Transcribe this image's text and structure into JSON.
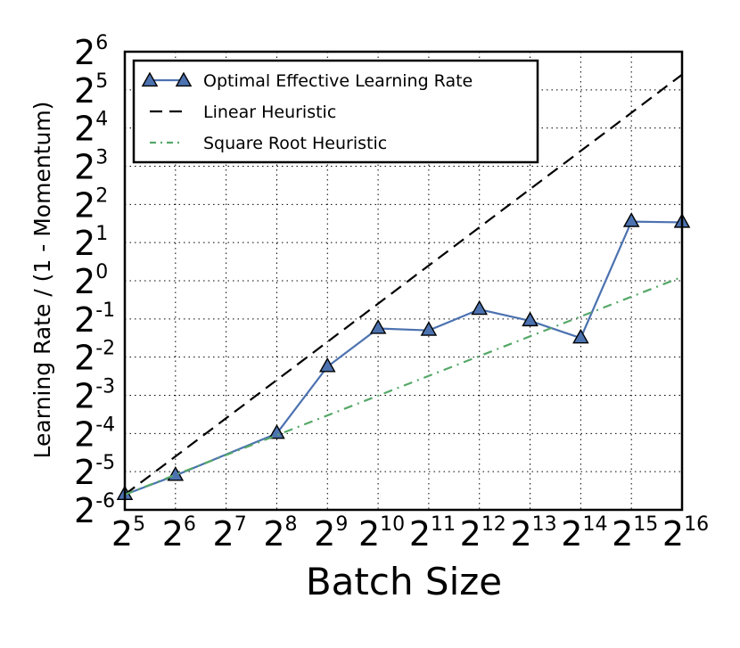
{
  "chart_data": {
    "type": "line",
    "xlabel": "Batch Size",
    "ylabel": "Learning Rate / (1 - Momentum)",
    "scale": "log2",
    "xlim": [
      5,
      16
    ],
    "ylim": [
      -6,
      6
    ],
    "x_tick_exponents": [
      5,
      6,
      7,
      8,
      9,
      10,
      11,
      12,
      13,
      14,
      15,
      16
    ],
    "y_tick_exponents": [
      -6,
      -5,
      -4,
      -3,
      -2,
      -1,
      0,
      1,
      2,
      3,
      4,
      5,
      6
    ],
    "tick_base": "2",
    "grid": true,
    "legend_position": "top-left",
    "series": [
      {
        "name": "Optimal Effective Learning Rate",
        "style": "solid",
        "marker": "triangle",
        "color": "#4C72B0",
        "x_log2": [
          5,
          6,
          8,
          9,
          10,
          11,
          12,
          13,
          14,
          15,
          16
        ],
        "y_log2": [
          -5.6,
          -5.1,
          -4.0,
          -2.25,
          -1.25,
          -1.3,
          -0.75,
          -1.05,
          -1.5,
          1.55,
          1.53
        ]
      },
      {
        "name": "Linear Heuristic",
        "style": "dashed",
        "color": "#000000",
        "x_log2": [
          5,
          16
        ],
        "y_log2": [
          -5.6,
          5.4
        ]
      },
      {
        "name": "Square Root Heuristic",
        "style": "dashdot",
        "color": "#55A868",
        "x_log2": [
          5,
          16
        ],
        "y_log2": [
          -5.6,
          0.1
        ]
      }
    ]
  }
}
